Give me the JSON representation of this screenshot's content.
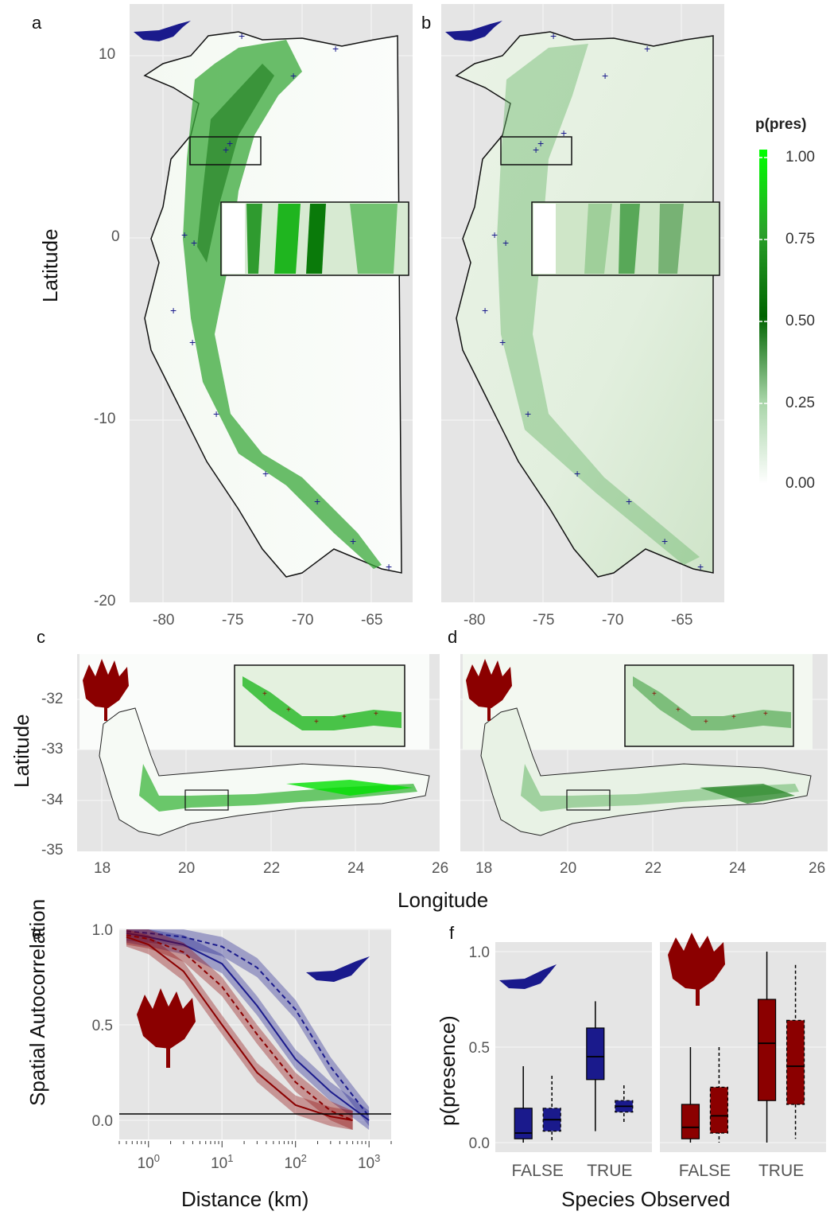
{
  "panels": {
    "a": "a",
    "b": "b",
    "c": "c",
    "d": "d",
    "e": "e",
    "f": "f"
  },
  "colors": {
    "bird_blue": "#1a1a8c",
    "protea_red": "#8b0000",
    "green_high": "#00ff00",
    "green_mid": "#006400",
    "panel_bg": "#e5e5e5"
  },
  "map_top": {
    "ylabel": "Latitude",
    "x_ticks": [
      "-80",
      "-75",
      "-70",
      "-65"
    ],
    "y_ticks": [
      "10",
      "0",
      "-10",
      "-20"
    ]
  },
  "map_bottom": {
    "ylabel": "Latitude",
    "xlabel": "Longitude",
    "x_ticks": [
      "18",
      "20",
      "22",
      "24",
      "26"
    ],
    "y_ticks": [
      "-32",
      "-33",
      "-34",
      "-35"
    ]
  },
  "legend": {
    "title": "p(pres)",
    "labels": [
      "1.00",
      "0.75",
      "0.50",
      "0.25",
      "0.00"
    ]
  },
  "chart_data": [
    {
      "panel": "e",
      "type": "line",
      "xlabel": "Distance (km)",
      "ylabel": "Spatial Autocorrelation",
      "x_scale": "log",
      "xlim": [
        0.4,
        2000
      ],
      "ylim": [
        -0.1,
        1.0
      ],
      "y_ticks": [
        "1.0",
        "0.5",
        "0.0"
      ],
      "x_ticks": [
        "10^0",
        "10^1",
        "10^2",
        "10^3"
      ],
      "series": [
        {
          "color": "#1a1a8c",
          "style": "solid",
          "x": [
            0.5,
            1,
            3,
            10,
            30,
            100,
            300,
            1000
          ],
          "y": [
            0.98,
            0.96,
            0.92,
            0.82,
            0.6,
            0.32,
            0.15,
            0.0
          ]
        },
        {
          "color": "#1a1a8c",
          "style": "dashed",
          "x": [
            0.5,
            1,
            3,
            10,
            30,
            100,
            300,
            1000
          ],
          "y": [
            0.99,
            0.98,
            0.96,
            0.91,
            0.8,
            0.58,
            0.28,
            0.02
          ]
        },
        {
          "color": "#8b0000",
          "style": "solid",
          "x": [
            0.5,
            1,
            3,
            10,
            30,
            100,
            300,
            600
          ],
          "y": [
            0.96,
            0.92,
            0.78,
            0.5,
            0.25,
            0.08,
            0.02,
            0.0
          ]
        },
        {
          "color": "#8b0000",
          "style": "dashed",
          "x": [
            0.5,
            1,
            3,
            10,
            30,
            100,
            300,
            600
          ],
          "y": [
            0.97,
            0.95,
            0.88,
            0.7,
            0.45,
            0.2,
            0.05,
            0.0
          ]
        }
      ]
    },
    {
      "panel": "f",
      "type": "bar",
      "xlabel": "Species Observed",
      "ylabel": "p(presence)",
      "ylim": [
        0,
        1.0
      ],
      "y_ticks": [
        "1.0",
        "0.5",
        "0.0"
      ],
      "categories": [
        "FALSE",
        "TRUE"
      ],
      "groups": [
        {
          "color": "#1a1a8c",
          "boxes": [
            {
              "cat": "FALSE",
              "style": "solid",
              "min": 0.0,
              "q1": 0.02,
              "median": 0.05,
              "q3": 0.18,
              "max": 0.4
            },
            {
              "cat": "FALSE",
              "style": "dashed",
              "min": 0.0,
              "q1": 0.06,
              "median": 0.12,
              "q3": 0.18,
              "max": 0.35
            },
            {
              "cat": "TRUE",
              "style": "solid",
              "min": 0.06,
              "q1": 0.33,
              "median": 0.45,
              "q3": 0.6,
              "max": 0.74
            },
            {
              "cat": "TRUE",
              "style": "dashed",
              "min": 0.1,
              "q1": 0.16,
              "median": 0.19,
              "q3": 0.22,
              "max": 0.3
            }
          ]
        },
        {
          "color": "#8b0000",
          "boxes": [
            {
              "cat": "FALSE",
              "style": "solid",
              "min": 0.0,
              "q1": 0.02,
              "median": 0.08,
              "q3": 0.2,
              "max": 0.5
            },
            {
              "cat": "FALSE",
              "style": "dashed",
              "min": 0.0,
              "q1": 0.05,
              "median": 0.14,
              "q3": 0.29,
              "max": 0.5
            },
            {
              "cat": "TRUE",
              "style": "solid",
              "min": 0.0,
              "q1": 0.22,
              "median": 0.52,
              "q3": 0.75,
              "max": 1.0
            },
            {
              "cat": "TRUE",
              "style": "dashed",
              "min": 0.02,
              "q1": 0.2,
              "median": 0.4,
              "q3": 0.64,
              "max": 0.93
            }
          ]
        }
      ]
    }
  ]
}
